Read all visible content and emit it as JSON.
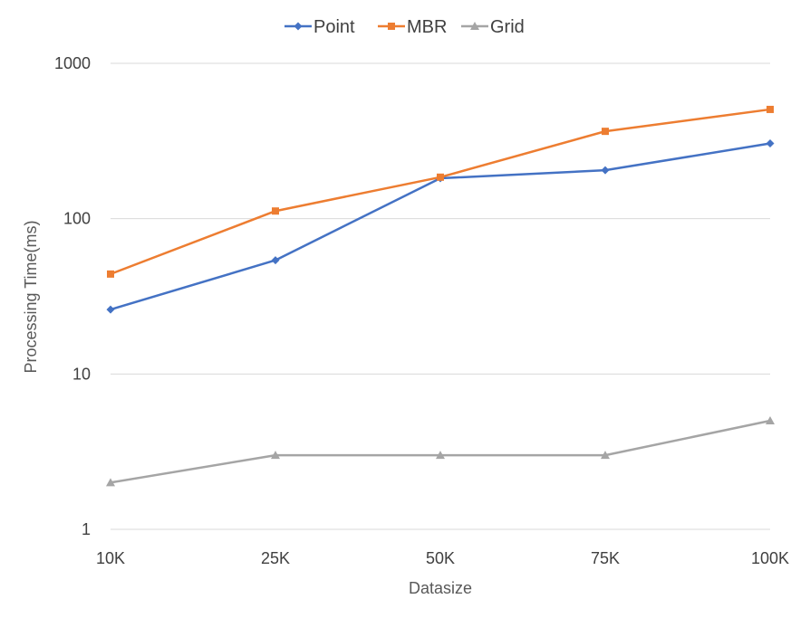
{
  "chart_data": {
    "type": "line",
    "title": "",
    "xlabel": "Datasize",
    "ylabel": "Processing Time(ms)",
    "yscale": "log",
    "ylim": [
      1,
      1000
    ],
    "yticks": [
      "1",
      "10",
      "100",
      "1000"
    ],
    "grid": "horizontal",
    "legend_position": "top",
    "categories": [
      "10K",
      "25K",
      "50K",
      "75K",
      "100K"
    ],
    "series": [
      {
        "name": "Point",
        "color": "#4472C4",
        "marker": "diamond",
        "values": [
          26,
          54,
          182,
          205,
          305
        ]
      },
      {
        "name": "MBR",
        "color": "#ED7D31",
        "marker": "square",
        "values": [
          44,
          112,
          185,
          365,
          505
        ]
      },
      {
        "name": "Grid",
        "color": "#A5A5A5",
        "marker": "triangle",
        "values": [
          2,
          3,
          3,
          3,
          5
        ]
      }
    ]
  }
}
